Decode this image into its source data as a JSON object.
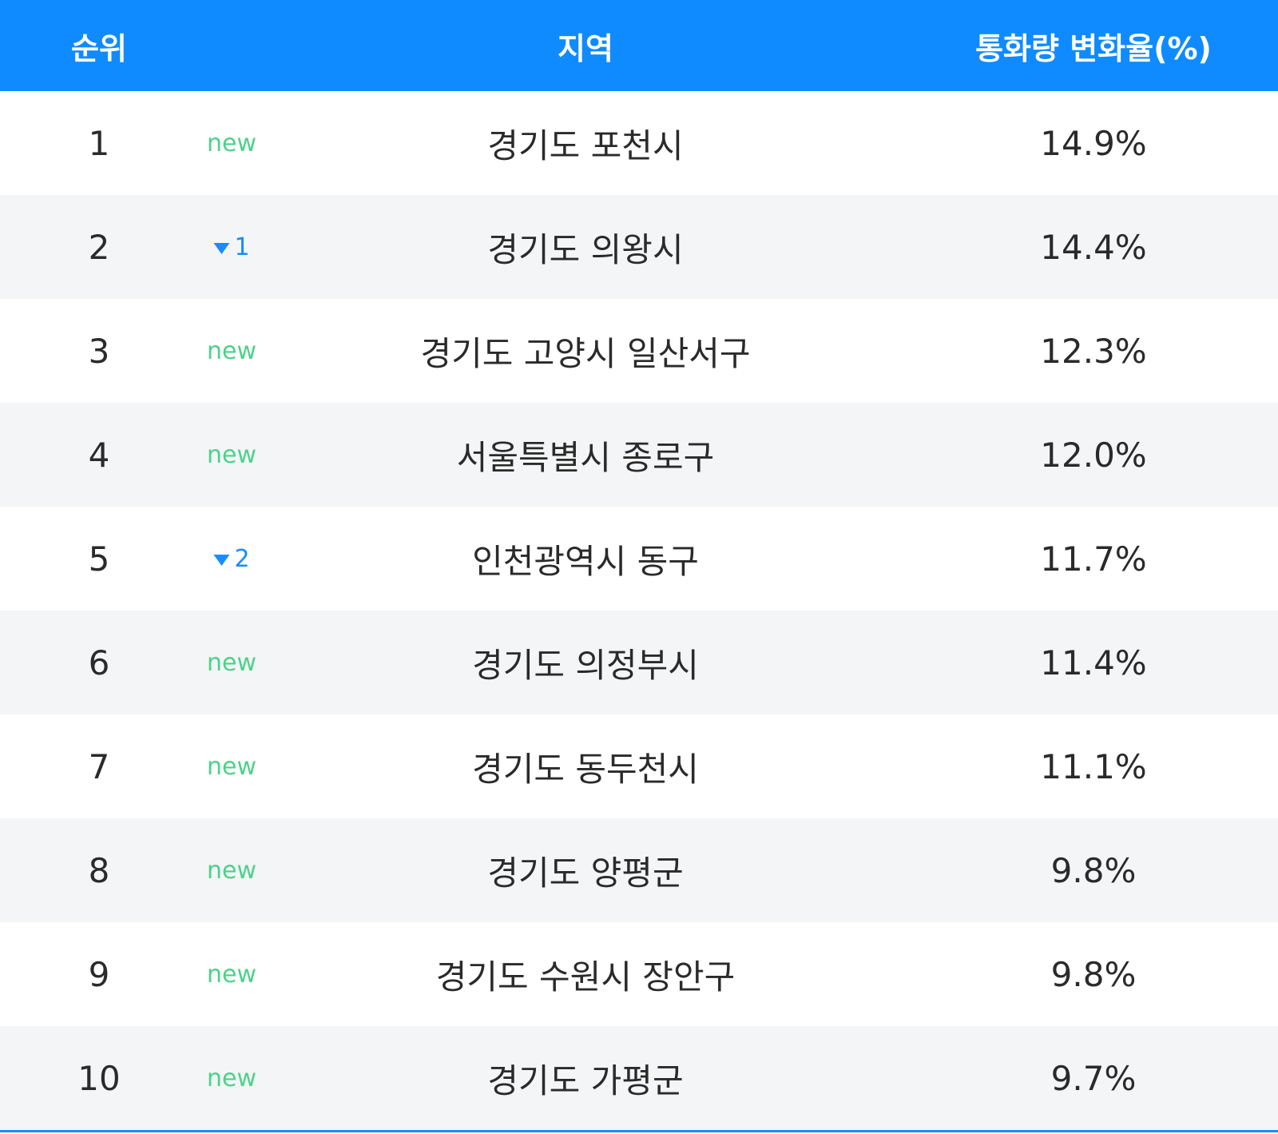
{
  "table": {
    "headers": [
      "순위",
      "지역",
      "통화량 변화율(%)"
    ],
    "rows": [
      {
        "rank": "1",
        "change": "new",
        "region": "경기도 포천시",
        "rate": "14.9%"
      },
      {
        "rank": "2",
        "change": "1",
        "change_icon": "down",
        "region": "경기도 의왕시",
        "rate": "14.4%"
      },
      {
        "rank": "3",
        "change": "new",
        "region": "경기도 고양시 일산서구",
        "rate": "12.3%"
      },
      {
        "rank": "4",
        "change": "new",
        "region": "서울특별시 종로구",
        "rate": "12.0%"
      },
      {
        "rank": "5",
        "change": "2",
        "change_icon": "down",
        "region": "인천광역시 동구",
        "rate": "11.7%"
      },
      {
        "rank": "6",
        "change": "new",
        "region": "경기도 의정부시",
        "rate": "11.4%"
      },
      {
        "rank": "7",
        "change": "new",
        "region": "경기도 동두천시",
        "rate": "11.1%"
      },
      {
        "rank": "8",
        "change": "new",
        "region": "경기도 양평군",
        "rate": "9.8%"
      },
      {
        "rank": "9",
        "change": "new",
        "region": "경기도 수원시 장안구",
        "rate": "9.8%"
      },
      {
        "rank": "10",
        "change": "new",
        "region": "경기도 가평군",
        "rate": "9.7%"
      }
    ]
  }
}
